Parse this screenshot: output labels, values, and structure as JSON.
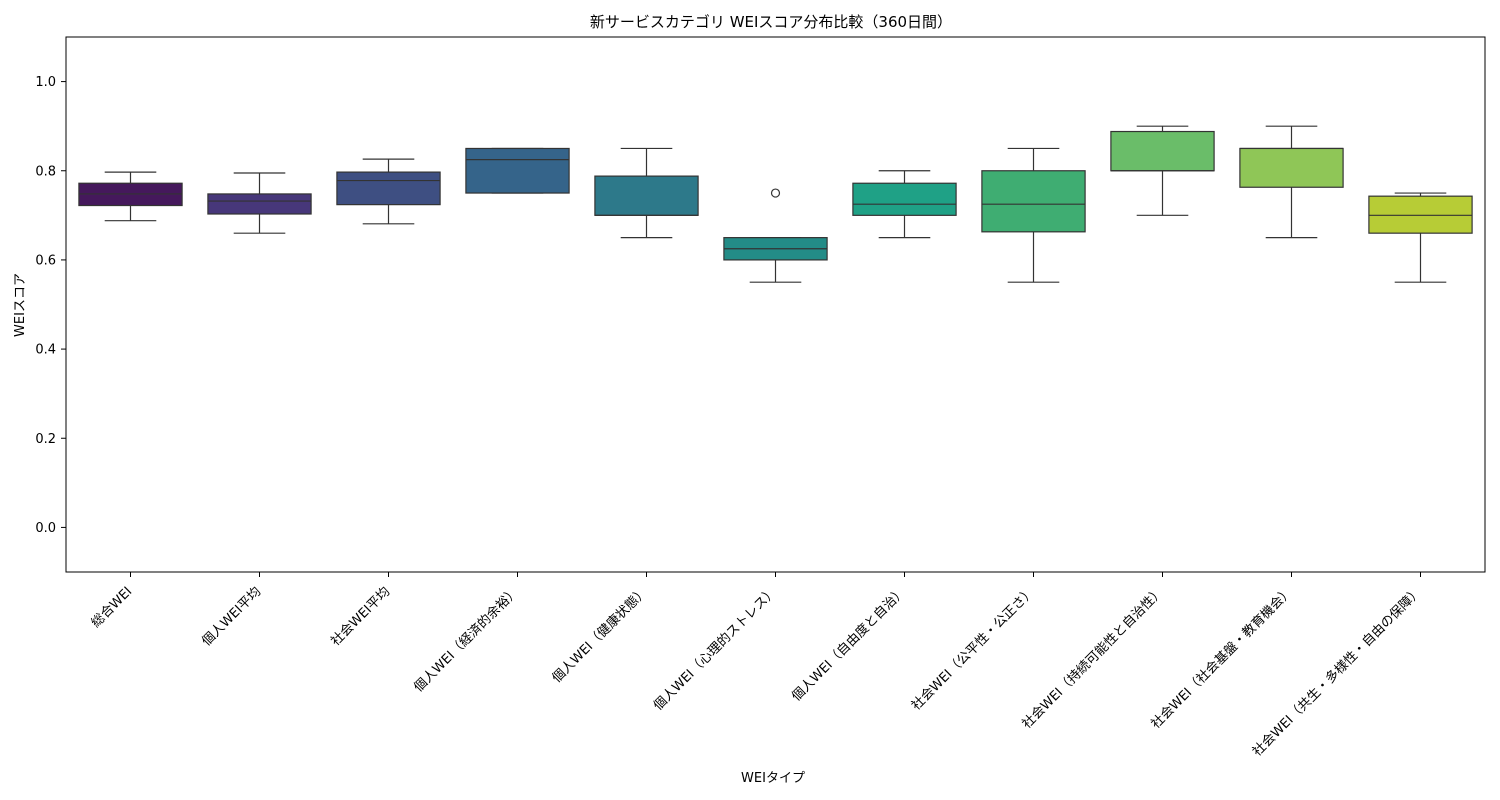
{
  "chart_data": {
    "type": "box",
    "title": "新サービスカテゴリ WEIスコア分布比較（360日間）",
    "xlabel": "WEIタイプ",
    "ylabel": "WEIスコア",
    "ylim": [
      -0.1,
      1.1
    ],
    "yticks": [
      0.0,
      0.2,
      0.4,
      0.6,
      0.8,
      1.0
    ],
    "ytick_labels": [
      "0.0",
      "0.2",
      "0.4",
      "0.6",
      "0.8",
      "1.0"
    ],
    "grid": false,
    "categories": [
      "総合WEI",
      "個人WEI平均",
      "社会WEI平均",
      "個人WEI（経済的余裕）",
      "個人WEI（健康状態）",
      "個人WEI（心理的ストレス）",
      "個人WEI（自由度と自治）",
      "社会WEI（公平性・公正さ）",
      "社会WEI（持続可能性と自治性）",
      "社会WEI（社会基盤・教育機会）",
      "社会WEI（共生・多様性・自由の保障）"
    ],
    "boxes": [
      {
        "whisker_low": 0.688,
        "q1": 0.722,
        "median": 0.748,
        "q3": 0.772,
        "whisker_high": 0.797,
        "outliers": [],
        "color": "#45185c"
      },
      {
        "whisker_low": 0.66,
        "q1": 0.703,
        "median": 0.732,
        "q3": 0.748,
        "whisker_high": 0.795,
        "outliers": [],
        "color": "#47377a"
      },
      {
        "whisker_low": 0.681,
        "q1": 0.724,
        "median": 0.778,
        "q3": 0.797,
        "whisker_high": 0.826,
        "outliers": [],
        "color": "#3e4f82"
      },
      {
        "whisker_low": 0.75,
        "q1": 0.75,
        "median": 0.825,
        "q3": 0.85,
        "whisker_high": 0.85,
        "outliers": [],
        "color": "#35648a"
      },
      {
        "whisker_low": 0.65,
        "q1": 0.7,
        "median": 0.7,
        "q3": 0.788,
        "whisker_high": 0.85,
        "outliers": [],
        "color": "#2d798a"
      },
      {
        "whisker_low": 0.55,
        "q1": 0.6,
        "median": 0.625,
        "q3": 0.65,
        "whisker_high": 0.65,
        "outliers": [
          0.75
        ],
        "color": "#238c87"
      },
      {
        "whisker_low": 0.65,
        "q1": 0.7,
        "median": 0.725,
        "q3": 0.772,
        "whisker_high": 0.8,
        "outliers": [],
        "color": "#1fa186"
      },
      {
        "whisker_low": 0.55,
        "q1": 0.663,
        "median": 0.725,
        "q3": 0.8,
        "whisker_high": 0.85,
        "outliers": [],
        "color": "#3fad72"
      },
      {
        "whisker_low": 0.7,
        "q1": 0.8,
        "median": 0.8,
        "q3": 0.888,
        "whisker_high": 0.9,
        "outliers": [],
        "color": "#6abd69"
      },
      {
        "whisker_low": 0.65,
        "q1": 0.763,
        "median": 0.85,
        "q3": 0.85,
        "whisker_high": 0.9,
        "outliers": [],
        "color": "#8fc657"
      },
      {
        "whisker_low": 0.55,
        "q1": 0.66,
        "median": 0.7,
        "q3": 0.743,
        "whisker_high": 0.75,
        "outliers": [],
        "color": "#b7cc36"
      }
    ]
  }
}
